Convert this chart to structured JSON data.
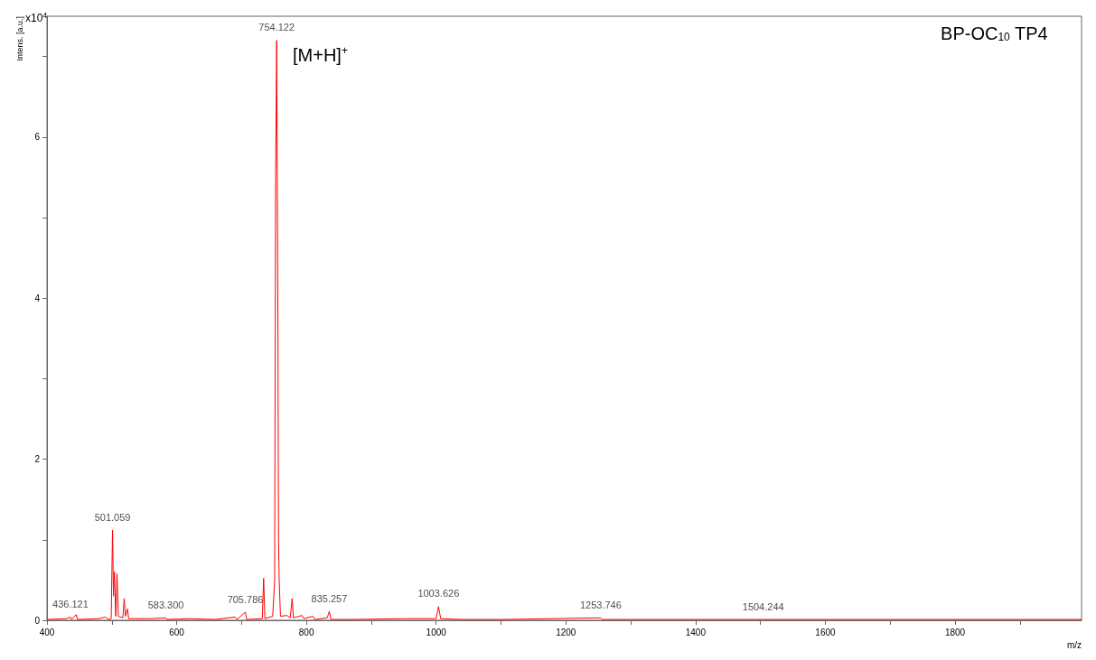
{
  "chart_data": {
    "type": "line",
    "title": "BP-OC$_{10}$ TP4",
    "xlabel": "m/z",
    "ylabel": "Intens. [a.u.]",
    "annotations": [
      "x10$^{4}$",
      "[M+H]$^{+}$",
      {
        "text": "436.121",
        "x": 436.121,
        "y": 0.04
      },
      {
        "text": "501.059",
        "x": 501.059,
        "y": 1.12
      },
      {
        "text": "583.300",
        "x": 583.3,
        "y": 0.03
      },
      {
        "text": "705.786",
        "x": 705.786,
        "y": 0.1
      },
      {
        "text": "754.122",
        "x": 754.122,
        "y": 7.2
      },
      {
        "text": "835.257",
        "x": 835.257,
        "y": 0.11
      },
      {
        "text": "1003.626",
        "x": 1003.626,
        "y": 0.17
      },
      {
        "text": "1253.746",
        "x": 1253.746,
        "y": 0.03
      },
      {
        "text": "1504.244",
        "x": 1504.244,
        "y": 0.01
      }
    ],
    "x": [
      400,
      430,
      436.121,
      438,
      445,
      447,
      480,
      490,
      495,
      499,
      501.059,
      502.5,
      504,
      506,
      508,
      510,
      517,
      519,
      521,
      524,
      526,
      560,
      583.3,
      585,
      620,
      660,
      690,
      693,
      705.786,
      708,
      732,
      734,
      736,
      748,
      751,
      752.5,
      754.122,
      755,
      756,
      757,
      758,
      760,
      770,
      775,
      778,
      780,
      793,
      796,
      810,
      813,
      832,
      835.257,
      838,
      870,
      950,
      1000,
      1003.626,
      1007,
      1040,
      1100,
      1253.746,
      1256,
      1504.244,
      1700,
      1995
    ],
    "series": [
      {
        "color": "#ff0000",
        "values": [
          0.01,
          0.02,
          0.04,
          0.01,
          0.07,
          0.01,
          0.02,
          0.04,
          0.01,
          0.02,
          1.12,
          0.3,
          0.6,
          0.05,
          0.58,
          0.05,
          0.03,
          0.27,
          0.05,
          0.14,
          0.02,
          0.02,
          0.03,
          0.01,
          0.02,
          0.01,
          0.04,
          0.01,
          0.1,
          0.01,
          0.02,
          0.52,
          0.02,
          0.05,
          0.5,
          5.5,
          7.2,
          5.6,
          3.8,
          1.0,
          0.5,
          0.05,
          0.06,
          0.03,
          0.27,
          0.03,
          0.06,
          0.02,
          0.05,
          0.01,
          0.03,
          0.11,
          0.01,
          0.01,
          0.02,
          0.02,
          0.17,
          0.02,
          0.01,
          0.01,
          0.03,
          0.01,
          0.01,
          0.01,
          0.01
        ]
      }
    ],
    "xlim": [
      400,
      1995
    ],
    "xticks": [
      400,
      {
        "value": 500,
        "label": null
      },
      600,
      {
        "value": 700,
        "label": null
      },
      800,
      {
        "value": 900,
        "label": null
      },
      1000,
      {
        "value": 1100,
        "label": null
      },
      1200,
      {
        "value": 1300,
        "label": null
      },
      1400,
      {
        "value": 1500,
        "label": null
      },
      1600,
      {
        "value": 1700,
        "label": null
      },
      1800,
      {
        "value": 1900,
        "label": null
      }
    ],
    "ylim": [
      0,
      7.5
    ],
    "yticks": [
      0,
      {
        "value": 1,
        "label": null
      },
      2,
      {
        "value": 3,
        "label": null
      },
      4,
      {
        "value": 5,
        "label": null
      },
      6,
      {
        "value": 7,
        "label": null
      }
    ],
    "grid": false,
    "line_style": "solid",
    "marker": "none"
  }
}
